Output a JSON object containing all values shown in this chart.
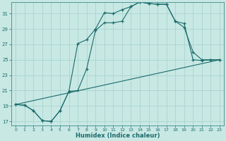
{
  "xlabel": "Humidex (Indice chaleur)",
  "xlim": [
    -0.5,
    23.5
  ],
  "ylim": [
    16.5,
    32.5
  ],
  "xticks": [
    0,
    1,
    2,
    3,
    4,
    5,
    6,
    7,
    8,
    9,
    10,
    11,
    12,
    13,
    14,
    15,
    16,
    17,
    18,
    19,
    20,
    21,
    22,
    23
  ],
  "yticks": [
    17,
    19,
    21,
    23,
    25,
    27,
    29,
    31
  ],
  "bg_color": "#c8e8e4",
  "grid_color": "#a8d4d0",
  "line_color": "#1a6b6b",
  "lines": [
    {
      "x": [
        0,
        1,
        2,
        3,
        4,
        5,
        6,
        7,
        8,
        9,
        10,
        11,
        12,
        13,
        14,
        15,
        16,
        17,
        18,
        19,
        20,
        21,
        22,
        23
      ],
      "y": [
        19.2,
        19.1,
        18.4,
        17.1,
        17.0,
        18.4,
        20.9,
        27.1,
        27.6,
        29.0,
        31.1,
        31.0,
        31.5,
        31.9,
        32.5,
        32.3,
        32.2,
        32.2,
        30.0,
        29.7,
        25.0,
        24.9,
        25.0,
        25.0
      ],
      "marker": true
    },
    {
      "x": [
        0,
        1,
        2,
        3,
        4,
        5,
        6,
        7,
        8,
        9,
        10,
        11,
        12,
        13,
        14,
        15,
        16,
        17,
        18,
        19,
        20,
        21,
        22,
        23
      ],
      "y": [
        19.2,
        19.1,
        18.4,
        17.1,
        17.0,
        18.4,
        20.9,
        21.0,
        23.8,
        28.8,
        29.8,
        29.8,
        30.0,
        31.9,
        32.5,
        32.3,
        32.2,
        32.2,
        30.0,
        29.2,
        26.0,
        25.0,
        25.0,
        25.0
      ],
      "marker": true
    },
    {
      "x": [
        0,
        23
      ],
      "y": [
        19.2,
        25.0
      ],
      "marker": false
    }
  ]
}
